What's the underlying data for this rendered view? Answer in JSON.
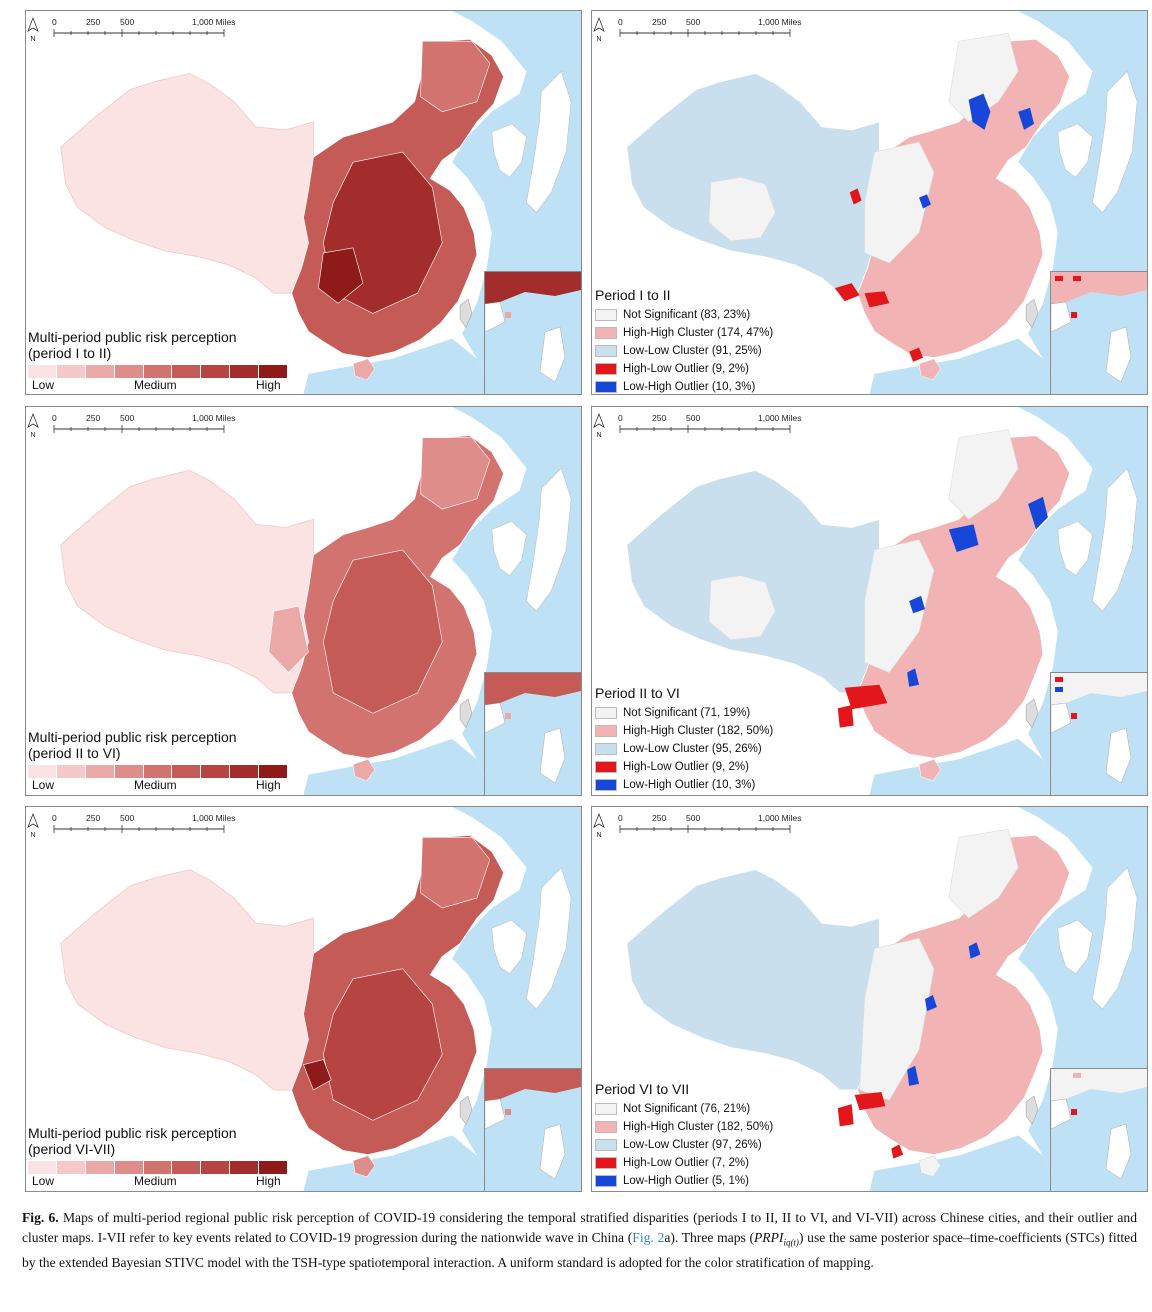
{
  "scale": {
    "labels": [
      "0",
      "250",
      "500",
      "1,000 Miles"
    ],
    "north_label": "N"
  },
  "colors": {
    "sea": "#bfe1f5",
    "land_outside": "#ffffff",
    "ramp": [
      "#fbe3e3",
      "#f4c9c8",
      "#eaa9a7",
      "#df8d8a",
      "#d27370",
      "#c55b57",
      "#b64442",
      "#a22d2c",
      "#8f1a1a"
    ],
    "not_significant": "#f3f3f3",
    "high_high": "#f1b3b3",
    "low_low": "#c9dfee",
    "high_low": "#e3171b",
    "low_high": "#1747d9"
  },
  "rows": [
    {
      "left_legend": {
        "title": "Multi-period public risk perception",
        "subtitle": "(period I to II)",
        "low": "Low",
        "medium": "Medium",
        "high": "High"
      },
      "right_legend": {
        "title": "Period I to II",
        "items": [
          {
            "label": "Not Significant (83, 23%)",
            "key": "not_significant"
          },
          {
            "label": "High-High Cluster (174, 47%)",
            "key": "high_high"
          },
          {
            "label": "Low-Low Cluster (91, 25%)",
            "key": "low_low"
          },
          {
            "label": "High-Low Outlier (9, 2%)",
            "key": "high_low"
          },
          {
            "label": "Low-High Outlier (10, 3%)",
            "key": "low_high"
          }
        ]
      }
    },
    {
      "left_legend": {
        "title": "Multi-period public risk perception",
        "subtitle": "(period II to VI)",
        "low": "Low",
        "medium": "Medium",
        "high": "High"
      },
      "right_legend": {
        "title": "Period II to VI",
        "items": [
          {
            "label": "Not Significant (71, 19%)",
            "key": "not_significant"
          },
          {
            "label": "High-High Cluster (182, 50%)",
            "key": "high_high"
          },
          {
            "label": "Low-Low Cluster (95, 26%)",
            "key": "low_low"
          },
          {
            "label": "High-Low Outlier (9, 2%)",
            "key": "high_low"
          },
          {
            "label": "Low-High Outlier (10, 3%)",
            "key": "low_high"
          }
        ]
      }
    },
    {
      "left_legend": {
        "title": "Multi-period public risk perception",
        "subtitle": "(period VI-VII)",
        "low": "Low",
        "medium": "Medium",
        "high": "High"
      },
      "right_legend": {
        "title": "Period VI to VII",
        "items": [
          {
            "label": "Not Significant (76, 21%)",
            "key": "not_significant"
          },
          {
            "label": "High-High Cluster (182, 50%)",
            "key": "high_high"
          },
          {
            "label": "Low-Low Cluster (97, 26%)",
            "key": "low_low"
          },
          {
            "label": "High-Low Outlier (7, 2%)",
            "key": "high_low"
          },
          {
            "label": "Low-High Outlier (5, 1%)",
            "key": "low_high"
          }
        ]
      }
    }
  ],
  "caption": {
    "label": "Fig. 6.",
    "text_1": "Maps of multi-period regional public risk perception of COVID-19 considering the temporal stratified disparities (periods I to II, II to VI, and VI-VII) across Chinese cities, and their outlier and cluster maps. I-VII refer to key events related to COVID-19 progression during the nationwide wave in China (",
    "link": "Fig. 2",
    "text_2": "a). Three maps (",
    "math": "PRPI",
    "math_sub": "iq(t)",
    "text_3": ") use the same posterior space–time-coefficients (STCs) fitted by the extended Bayesian STIVC model with the TSH-type spatiotemporal interaction. A uniform standard is adopted for the color stratification of mapping."
  }
}
